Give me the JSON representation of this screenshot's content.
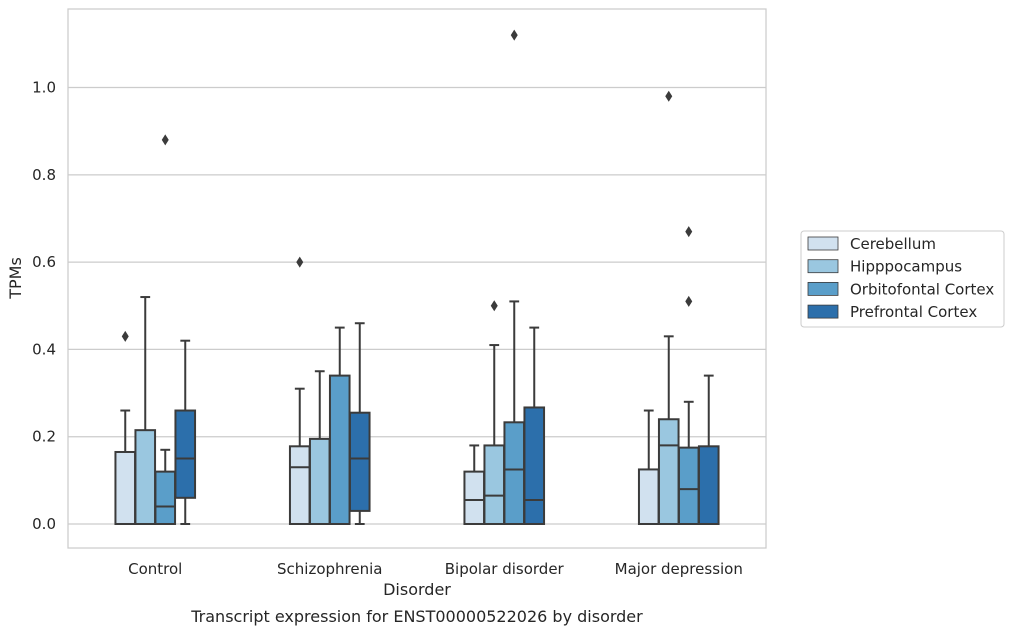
{
  "chart_data": {
    "type": "box",
    "title": "Transcript expression for ENST00000522026 by disorder",
    "xlabel": "Disorder",
    "ylabel": "TPMs",
    "ylim": [
      -0.055,
      1.18
    ],
    "yticks": [
      0.0,
      0.2,
      0.4,
      0.6,
      0.8,
      1.0
    ],
    "ytick_labels": [
      "0.0",
      "0.2",
      "0.4",
      "0.6",
      "0.8",
      "1.0"
    ],
    "grid": "horizontal",
    "legend_position": "right",
    "categories": [
      "Control",
      "Schizophrenia",
      "Bipolar disorder",
      "Major depression"
    ],
    "series": [
      {
        "name": "Cerebellum",
        "color": "#d1e1ef",
        "boxes": [
          {
            "whisker_low": 0.0,
            "q1": 0.0,
            "median": 0.0,
            "q3": 0.165,
            "whisker_high": 0.26,
            "outliers": [
              0.43
            ]
          },
          {
            "whisker_low": 0.0,
            "q1": 0.0,
            "median": 0.13,
            "q3": 0.178,
            "whisker_high": 0.31,
            "outliers": [
              0.6
            ]
          },
          {
            "whisker_low": 0.0,
            "q1": 0.0,
            "median": 0.055,
            "q3": 0.12,
            "whisker_high": 0.18,
            "outliers": []
          },
          {
            "whisker_low": 0.0,
            "q1": 0.0,
            "median": 0.0,
            "q3": 0.125,
            "whisker_high": 0.26,
            "outliers": []
          }
        ]
      },
      {
        "name": "Hipppocampus",
        "color": "#9ac7e0",
        "boxes": [
          {
            "whisker_low": 0.0,
            "q1": 0.0,
            "median": 0.0,
            "q3": 0.215,
            "whisker_high": 0.52,
            "outliers": []
          },
          {
            "whisker_low": 0.0,
            "q1": 0.0,
            "median": 0.0,
            "q3": 0.195,
            "whisker_high": 0.35,
            "outliers": []
          },
          {
            "whisker_low": 0.0,
            "q1": 0.0,
            "median": 0.065,
            "q3": 0.18,
            "whisker_high": 0.41,
            "outliers": [
              0.5
            ]
          },
          {
            "whisker_low": 0.0,
            "q1": 0.0,
            "median": 0.18,
            "q3": 0.24,
            "whisker_high": 0.43,
            "outliers": [
              0.98
            ]
          }
        ]
      },
      {
        "name": "Orbitofontal Cortex",
        "color": "#5a9ec9",
        "boxes": [
          {
            "whisker_low": 0.0,
            "q1": 0.0,
            "median": 0.04,
            "q3": 0.12,
            "whisker_high": 0.17,
            "outliers": [
              0.88
            ]
          },
          {
            "whisker_low": 0.0,
            "q1": 0.0,
            "median": 0.0,
            "q3": 0.34,
            "whisker_high": 0.45,
            "outliers": []
          },
          {
            "whisker_low": 0.0,
            "q1": 0.0,
            "median": 0.125,
            "q3": 0.233,
            "whisker_high": 0.51,
            "outliers": [
              1.12
            ]
          },
          {
            "whisker_low": 0.0,
            "q1": 0.0,
            "median": 0.08,
            "q3": 0.175,
            "whisker_high": 0.28,
            "outliers": [
              0.67,
              0.51
            ]
          }
        ]
      },
      {
        "name": "Prefrontal Cortex",
        "color": "#2c6fab",
        "boxes": [
          {
            "whisker_low": 0.0,
            "q1": 0.06,
            "median": 0.15,
            "q3": 0.26,
            "whisker_high": 0.42,
            "outliers": []
          },
          {
            "whisker_low": 0.0,
            "q1": 0.03,
            "median": 0.15,
            "q3": 0.255,
            "whisker_high": 0.46,
            "outliers": []
          },
          {
            "whisker_low": 0.0,
            "q1": 0.0,
            "median": 0.055,
            "q3": 0.267,
            "whisker_high": 0.45,
            "outliers": []
          },
          {
            "whisker_low": 0.0,
            "q1": 0.0,
            "median": 0.0,
            "q3": 0.178,
            "whisker_high": 0.34,
            "outliers": []
          }
        ]
      }
    ]
  }
}
